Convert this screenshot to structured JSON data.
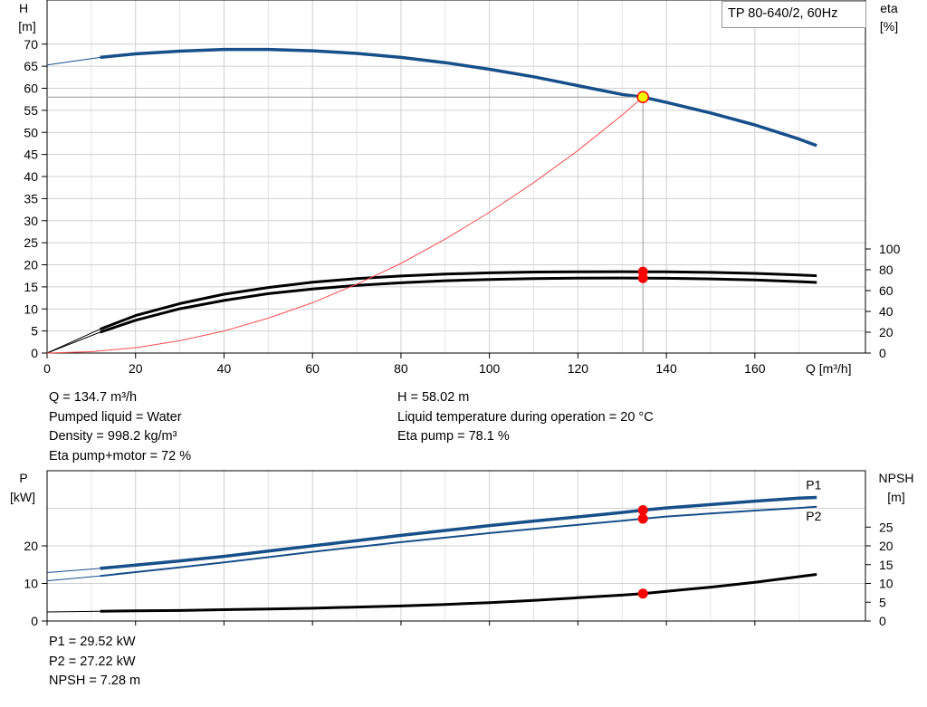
{
  "chart_data": [
    {
      "type": "line",
      "title": "TP 80-640/2, 60Hz",
      "xlabel": "Q [m³/h]",
      "ylabel_left": [
        "H",
        "[m]"
      ],
      "ylabel_right": [
        "eta",
        "[%]"
      ],
      "xlim": [
        0,
        185
      ],
      "x_ticks": [
        "0",
        "20",
        "40",
        "60",
        "80",
        "100",
        "120",
        "140",
        "160"
      ],
      "ylim_left": [
        0,
        80
      ],
      "y_ticks_left": [
        "0",
        "5",
        "10",
        "15",
        "20",
        "25",
        "30",
        "35",
        "40",
        "45",
        "50",
        "55",
        "60",
        "65",
        "70"
      ],
      "ylim_right": [
        0,
        100
      ],
      "y_ticks_right": [
        "0",
        "20",
        "40",
        "60",
        "80",
        "100"
      ],
      "grid": true,
      "colors": {
        "head": "#174f8a",
        "eta": "#000000",
        "system": "#ff4d4d",
        "marker": "#ff0000",
        "duty": "#ffff00"
      },
      "series": [
        {
          "key": "head",
          "axis": "left",
          "x": [
            0,
            12,
            20,
            30,
            40,
            50,
            60,
            70,
            80,
            90,
            100,
            110,
            120,
            130,
            134.7,
            140,
            150,
            160,
            170,
            174
          ],
          "y": [
            65.3,
            67,
            67.8,
            68.4,
            68.8,
            68.8,
            68.5,
            67.9,
            67.0,
            65.8,
            64.3,
            62.6,
            60.6,
            58.6,
            58.0,
            56.8,
            54.4,
            51.7,
            48.5,
            47.0
          ]
        },
        {
          "key": "eta_pump",
          "axis": "right",
          "x": [
            0,
            12,
            20,
            30,
            40,
            50,
            60,
            70,
            80,
            90,
            100,
            110,
            120,
            130,
            134.7,
            140,
            150,
            160,
            170,
            174
          ],
          "y": [
            0,
            23,
            36,
            47.5,
            56.5,
            63,
            68,
            71.5,
            74,
            75.8,
            77,
            77.8,
            78.1,
            78.2,
            78.1,
            78.0,
            77.5,
            76.5,
            75,
            74.3
          ]
        },
        {
          "key": "eta_pump_motor",
          "axis": "right",
          "x": [
            0,
            12,
            20,
            30,
            40,
            50,
            60,
            70,
            80,
            90,
            100,
            110,
            120,
            130,
            134.7,
            140,
            150,
            160,
            170,
            174
          ],
          "y": [
            0,
            20,
            31.5,
            42.5,
            50.5,
            57,
            61.5,
            65,
            67.5,
            69.5,
            70.7,
            71.5,
            72,
            72.1,
            72.0,
            71.8,
            71.2,
            70.2,
            68.6,
            67.8
          ]
        },
        {
          "key": "system",
          "axis": "left",
          "x": [
            0,
            10,
            20,
            30,
            40,
            50,
            60,
            70,
            80,
            90,
            100,
            110,
            120,
            130,
            134.7
          ],
          "y": [
            0,
            0.3,
            1.2,
            2.8,
            5.0,
            7.9,
            11.4,
            15.6,
            20.3,
            25.8,
            31.9,
            38.6,
            45.9,
            53.9,
            58.0
          ]
        }
      ],
      "markers": [
        {
          "x": 134.7,
          "y": 58.0,
          "axis": "left",
          "kind": "duty"
        },
        {
          "x": 134.7,
          "y": 78.1,
          "axis": "right",
          "kind": "point"
        },
        {
          "x": 134.7,
          "y": 72.0,
          "axis": "right",
          "kind": "point"
        }
      ]
    },
    {
      "type": "line",
      "xlim": [
        0,
        185
      ],
      "ylabel_left": [
        "P",
        "[kW]"
      ],
      "ylabel_right": [
        "NPSH",
        "[m]"
      ],
      "ylim_left": [
        0,
        32.5
      ],
      "y_ticks_left": [
        "0",
        "10",
        "20"
      ],
      "ylim_right": [
        0,
        32.5
      ],
      "y_ticks_right": [
        "0",
        "5",
        "10",
        "15",
        "20",
        "25"
      ],
      "grid": true,
      "series": [
        {
          "key": "P1",
          "name": "P1",
          "axis": "left",
          "x": [
            0,
            12,
            20,
            30,
            40,
            50,
            60,
            70,
            80,
            90,
            100,
            110,
            120,
            130,
            134.7,
            140,
            150,
            160,
            170,
            174
          ],
          "y": [
            12.9,
            14.0,
            14.9,
            16.0,
            17.2,
            18.6,
            20.0,
            21.4,
            22.8,
            24.1,
            25.4,
            26.6,
            27.7,
            28.9,
            29.52,
            30.1,
            31.0,
            31.9,
            32.7,
            32.9
          ]
        },
        {
          "key": "P2",
          "name": "P2",
          "axis": "left",
          "x": [
            0,
            12,
            20,
            30,
            40,
            50,
            60,
            70,
            80,
            90,
            100,
            110,
            120,
            130,
            134.7,
            140,
            150,
            160,
            170,
            174
          ],
          "y": [
            10.7,
            12.0,
            13.0,
            14.3,
            15.6,
            17.0,
            18.4,
            19.7,
            21.0,
            22.2,
            23.4,
            24.5,
            25.6,
            26.7,
            27.22,
            27.8,
            28.6,
            29.4,
            30.1,
            30.4
          ]
        },
        {
          "key": "NPSH",
          "axis": "right",
          "x": [
            0,
            12,
            20,
            30,
            40,
            50,
            60,
            70,
            80,
            90,
            100,
            110,
            120,
            130,
            134.7,
            140,
            150,
            160,
            170,
            174
          ],
          "y": [
            2.4,
            2.6,
            2.7,
            2.8,
            3.0,
            3.2,
            3.4,
            3.7,
            4.0,
            4.4,
            4.9,
            5.5,
            6.2,
            6.9,
            7.28,
            7.9,
            9.0,
            10.3,
            11.8,
            12.4
          ]
        }
      ],
      "markers": [
        {
          "x": 134.7,
          "y": 29.52,
          "axis": "left"
        },
        {
          "x": 134.7,
          "y": 27.22,
          "axis": "left"
        },
        {
          "x": 134.7,
          "y": 7.28,
          "axis": "right"
        }
      ]
    }
  ],
  "info_top_left": [
    "Q = 134.7 m³/h",
    "Pumped liquid = Water",
    "Density = 998.2 kg/m³",
    "Eta pump+motor = 72 %"
  ],
  "info_top_right": [
    "H = 58.02 m",
    "Liquid temperature during operation = 20 °C",
    "Eta pump = 78.1 %"
  ],
  "info_bottom": [
    "P1 = 29.52 kW",
    "P2 = 27.22 kW",
    "NPSH = 7.28 m"
  ]
}
